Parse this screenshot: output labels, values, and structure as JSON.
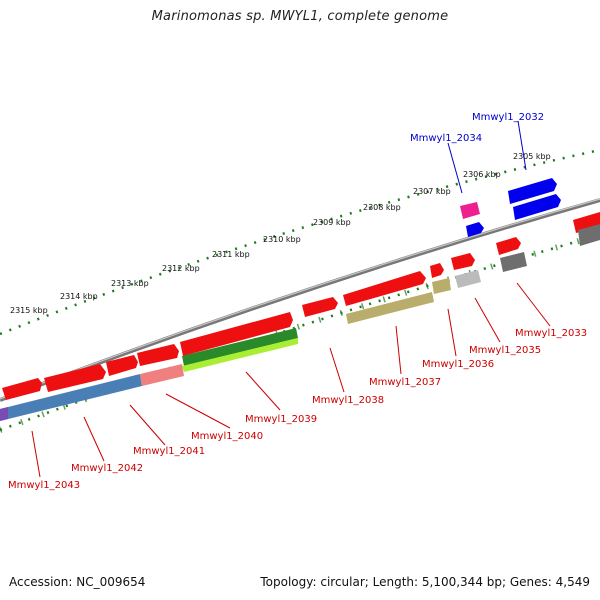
{
  "title": "Marinomonas sp. MWYL1, complete genome",
  "footer": {
    "accession": "Accession: NC_009654",
    "summary": "Topology: circular; Length: 5,100,344 bp; Genes: 4,549"
  },
  "colors": {
    "backbone": "#8a8a8a",
    "scale": "#1e7a1e",
    "forward_gene": "#ee0000",
    "highlight_gene": "#0000dd",
    "label_red": "#cc0000",
    "label_blue": "#0000cc"
  },
  "scale_ticks": [
    "2315 kbp",
    "2314 kbp",
    "2313 kbp",
    "2312 kbp",
    "2311 kbp",
    "2310 kbp",
    "2309 kbp",
    "2308 kbp",
    "2307 kbp",
    "2306 kbp",
    "2305 kbp"
  ],
  "gene_labels_blue": [
    "Mmwyl1_2032",
    "Mmwyl1_2034"
  ],
  "gene_labels_red": [
    "Mmwyl1_2033",
    "Mmwyl1_2035",
    "Mmwyl1_2036",
    "Mmwyl1_2037",
    "Mmwyl1_2038",
    "Mmwyl1_2039",
    "Mmwyl1_2040",
    "Mmwyl1_2041",
    "Mmwyl1_2042",
    "Mmwyl1_2043"
  ]
}
